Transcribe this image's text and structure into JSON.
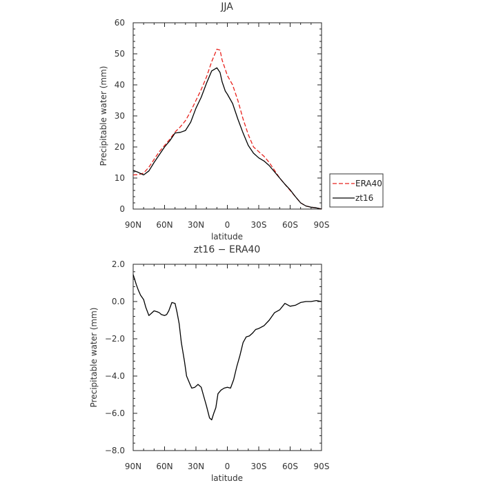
{
  "chart_data": [
    {
      "type": "line",
      "title": "JJA",
      "xlabel": "latitude",
      "ylabel": "Precipitable water (mm)",
      "xlim": [
        90,
        -90
      ],
      "ylim": [
        0,
        60
      ],
      "x_ticks": [
        90,
        60,
        30,
        0,
        -30,
        -60,
        -90
      ],
      "x_tick_labels": [
        "90N",
        "60N",
        "30N",
        "0",
        "30S",
        "60S",
        "90S"
      ],
      "y_ticks": [
        0,
        10,
        20,
        30,
        40,
        50,
        60
      ],
      "y_tick_labels": [
        "0",
        "10",
        "20",
        "30",
        "40",
        "50",
        "60"
      ],
      "legend_position": "right",
      "series": [
        {
          "name": "ERA40",
          "style": "dashed",
          "color": "#e8211c",
          "x": [
            90,
            85,
            80,
            75,
            70,
            65,
            60,
            55,
            50,
            45,
            40,
            35,
            30,
            25,
            20,
            15,
            10,
            7,
            5,
            2,
            0,
            -5,
            -10,
            -15,
            -20,
            -25,
            -30,
            -35,
            -40,
            -45,
            -50,
            -55,
            -60,
            -65,
            -70,
            -75,
            -80,
            -85,
            -90
          ],
          "values": [
            11.0,
            11.1,
            11.6,
            13.5,
            16.0,
            18.5,
            20.5,
            22.5,
            24.8,
            26.5,
            28.5,
            31.5,
            35.0,
            38.5,
            42.5,
            47.5,
            51.5,
            51.2,
            48.0,
            45.0,
            43.0,
            40.0,
            35.0,
            29.0,
            24.0,
            20.0,
            18.5,
            17.0,
            15.0,
            12.5,
            10.0,
            8.0,
            6.0,
            4.0,
            2.0,
            1.0,
            0.6,
            0.4,
            0.0
          ]
        },
        {
          "name": "zt16",
          "style": "solid",
          "color": "#000000",
          "x": [
            90,
            85,
            80,
            75,
            70,
            65,
            60,
            55,
            50,
            45,
            40,
            35,
            30,
            25,
            20,
            15,
            10,
            7,
            5,
            2,
            0,
            -5,
            -10,
            -15,
            -20,
            -25,
            -30,
            -35,
            -40,
            -45,
            -50,
            -55,
            -60,
            -65,
            -70,
            -75,
            -80,
            -85,
            -90
          ],
          "values": [
            12.5,
            11.8,
            11.0,
            12.3,
            15.0,
            17.5,
            20.0,
            22.0,
            24.5,
            24.7,
            25.3,
            28.0,
            32.5,
            36.0,
            40.5,
            44.5,
            45.5,
            44.0,
            41.0,
            38.0,
            37.0,
            34.0,
            29.0,
            24.5,
            20.5,
            18.0,
            16.5,
            15.5,
            14.0,
            12.0,
            10.0,
            8.0,
            6.2,
            4.0,
            2.0,
            1.0,
            0.6,
            0.4,
            0.0
          ]
        }
      ]
    },
    {
      "type": "line",
      "title": "zt16 − ERA40",
      "xlabel": "latitude",
      "ylabel": "Precipitable water (mm)",
      "xlim": [
        90,
        -90
      ],
      "ylim": [
        -8,
        2
      ],
      "x_ticks": [
        90,
        60,
        30,
        0,
        -30,
        -60,
        -90
      ],
      "x_tick_labels": [
        "90N",
        "60N",
        "30N",
        "0",
        "30S",
        "60S",
        "90S"
      ],
      "y_ticks": [
        2,
        0,
        -2,
        -4,
        -6,
        -8
      ],
      "y_tick_labels": [
        "2.0",
        "0.0",
        "−2.0",
        "−4.0",
        "−6.0",
        "−8.0"
      ],
      "series": [
        {
          "color": "#000000",
          "style": "solid",
          "x": [
            90,
            87,
            85,
            83,
            80,
            78,
            75,
            73,
            70,
            67,
            65,
            63,
            60,
            58,
            56,
            53,
            50,
            48,
            46,
            44,
            41,
            39,
            36,
            34,
            31,
            28,
            25,
            23,
            20,
            17,
            15,
            13,
            11,
            9,
            6,
            3,
            0,
            -3,
            -6,
            -9,
            -12,
            -15,
            -18,
            -21,
            -24,
            -27,
            -30,
            -35,
            -40,
            -45,
            -50,
            -55,
            -60,
            -65,
            -70,
            -75,
            -80,
            -85,
            -90
          ],
          "values": [
            1.45,
            0.9,
            0.6,
            0.35,
            0.1,
            -0.3,
            -0.75,
            -0.65,
            -0.5,
            -0.55,
            -0.6,
            -0.7,
            -0.75,
            -0.7,
            -0.5,
            -0.05,
            -0.1,
            -0.6,
            -1.2,
            -2.2,
            -3.2,
            -4.0,
            -4.4,
            -4.65,
            -4.6,
            -4.45,
            -4.6,
            -5.0,
            -5.6,
            -6.25,
            -6.35,
            -6.0,
            -5.7,
            -4.95,
            -4.75,
            -4.65,
            -4.6,
            -4.65,
            -4.2,
            -3.5,
            -2.9,
            -2.2,
            -1.9,
            -1.85,
            -1.7,
            -1.5,
            -1.45,
            -1.3,
            -1.0,
            -0.6,
            -0.45,
            -0.1,
            -0.25,
            -0.2,
            -0.05,
            0.0,
            0.0,
            0.05,
            0.0
          ]
        }
      ]
    }
  ]
}
